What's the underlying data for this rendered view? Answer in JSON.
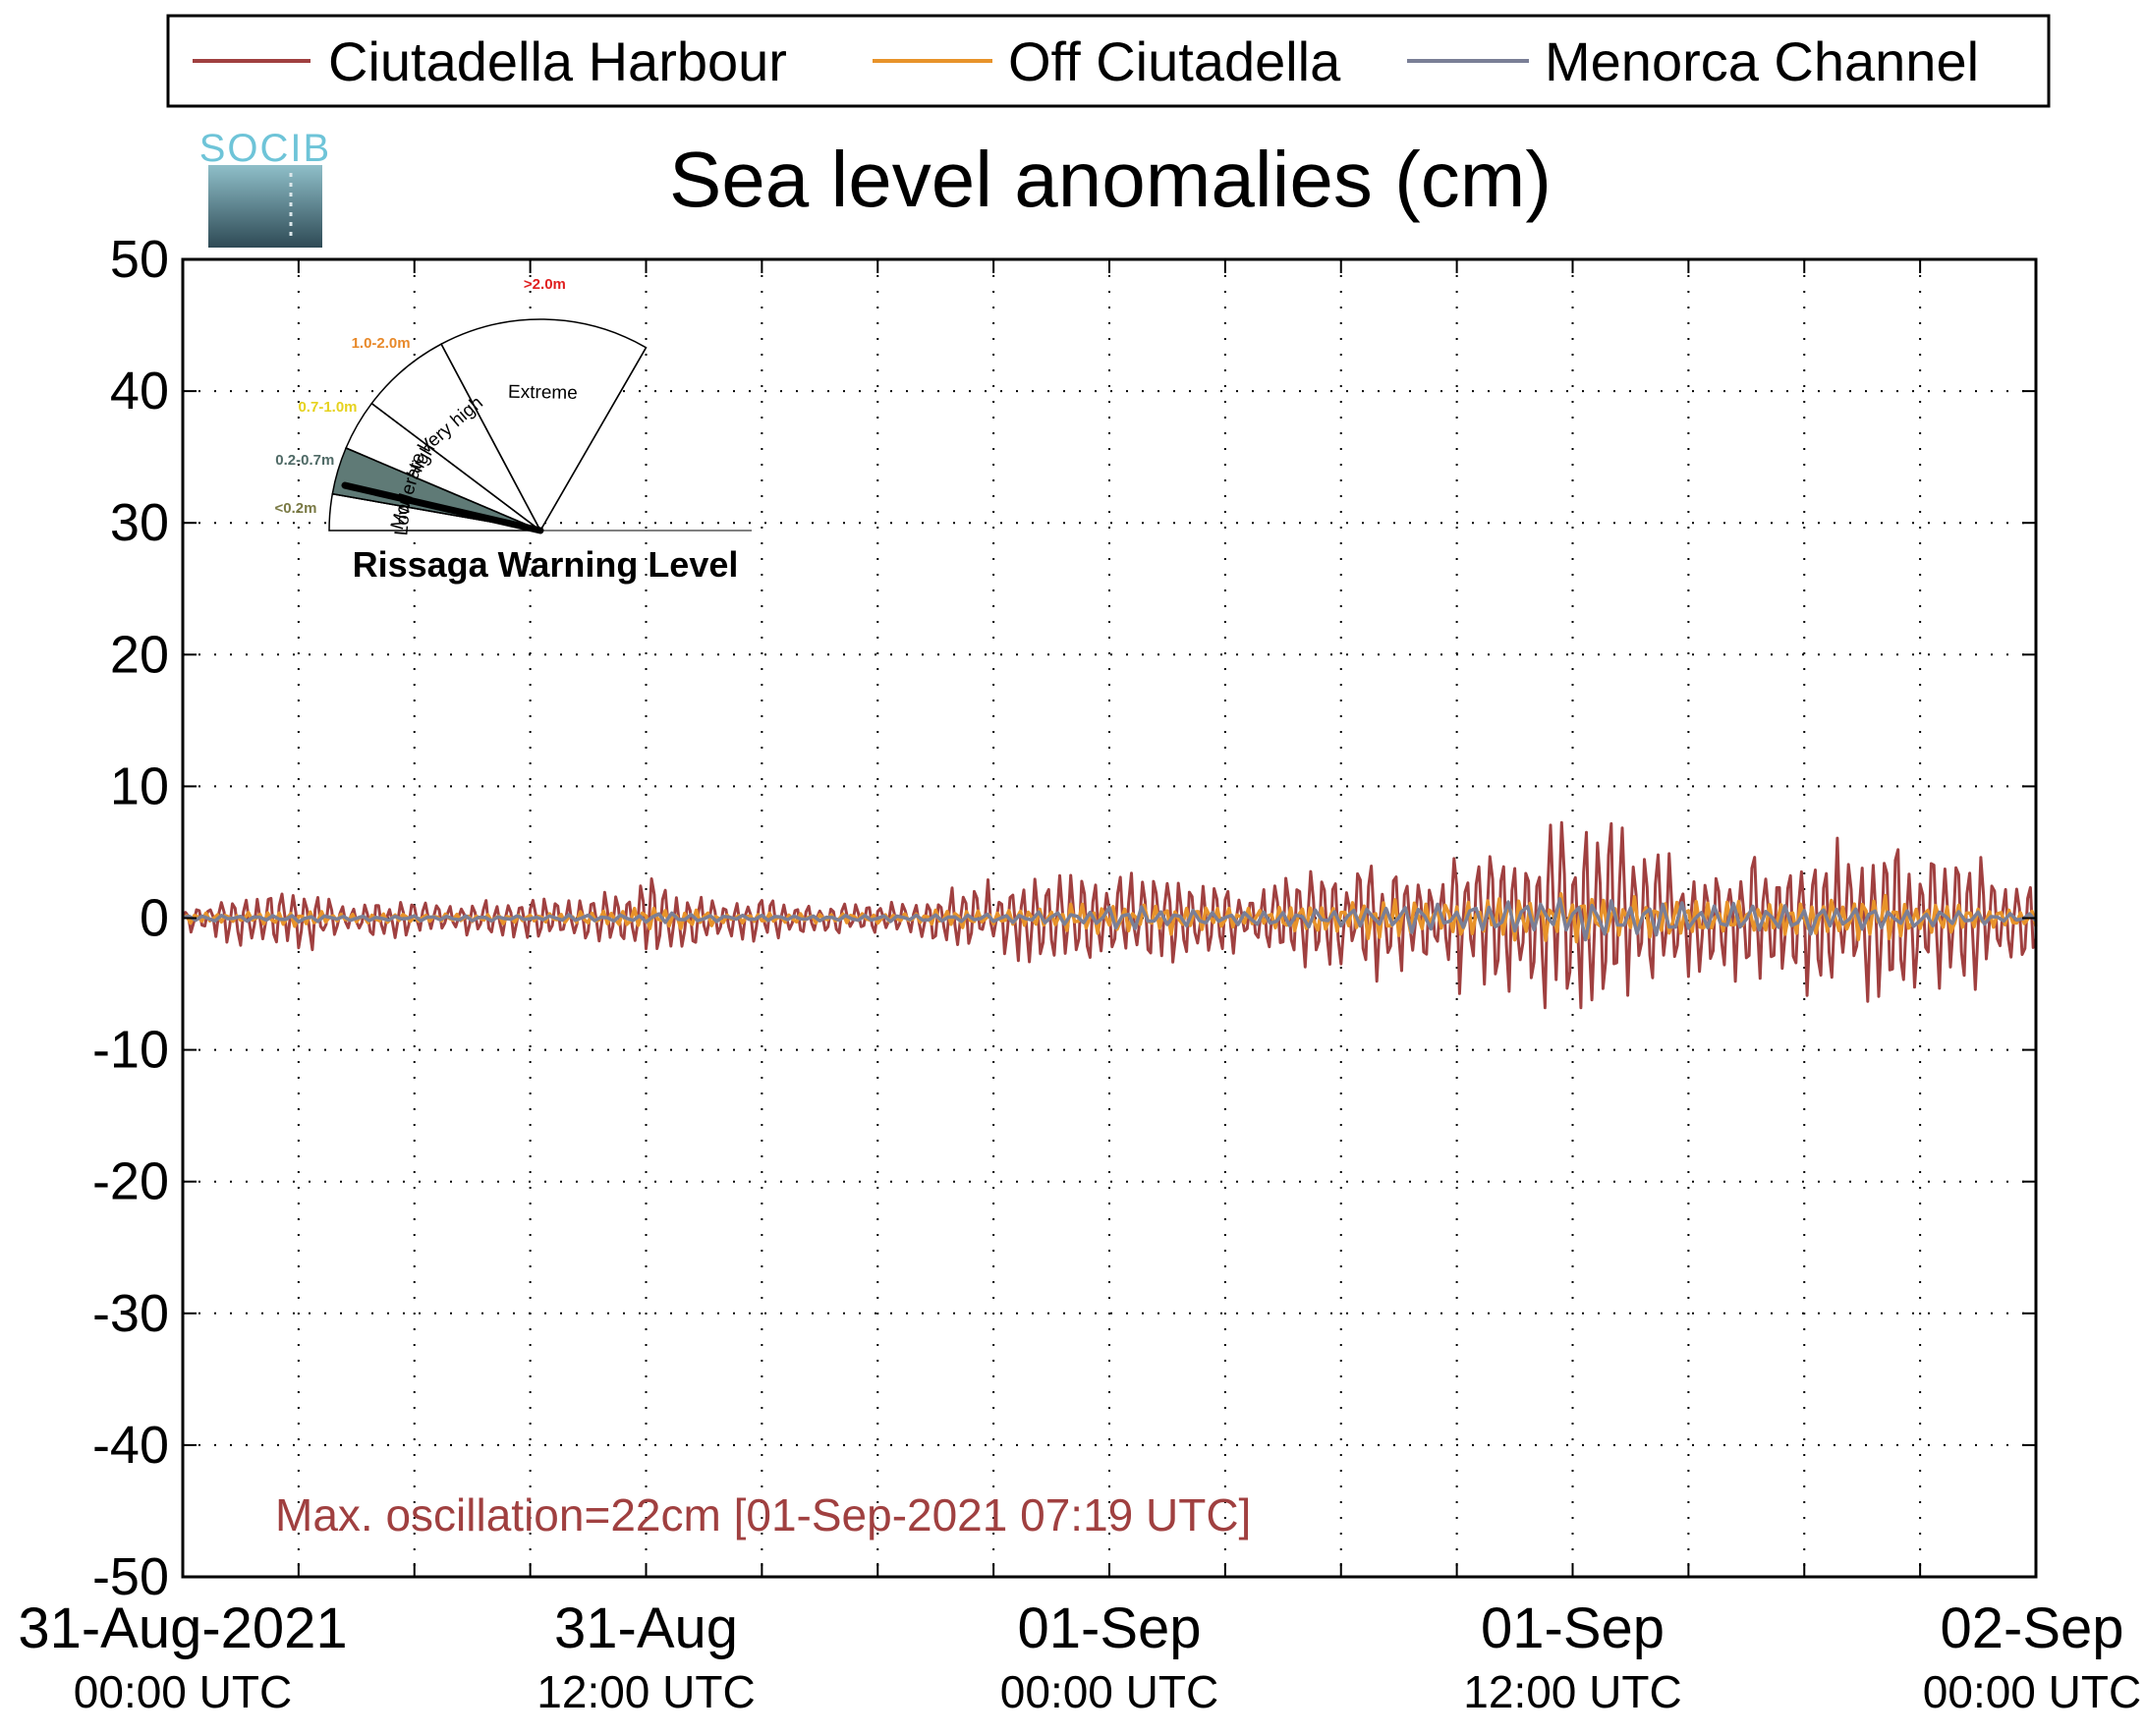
{
  "chart_data": {
    "type": "line",
    "title": "Sea level anomalies (cm)",
    "xlabel": "",
    "ylabel": "",
    "ylim": [
      -50,
      50
    ],
    "yticks": [
      50,
      40,
      30,
      20,
      10,
      0,
      -10,
      -20,
      -30,
      -40,
      -50
    ],
    "xlim_hours": [
      0,
      48
    ],
    "xticks": [
      {
        "hour": 0,
        "date": "31-Aug-2021",
        "time": "00:00 UTC"
      },
      {
        "hour": 12,
        "date": "31-Aug",
        "time": "12:00 UTC"
      },
      {
        "hour": 24,
        "date": "01-Sep",
        "time": "00:00 UTC"
      },
      {
        "hour": 36,
        "date": "01-Sep",
        "time": "12:00 UTC"
      },
      {
        "hour": 48,
        "date": "02-Sep",
        "time": "00:00 UTC"
      }
    ],
    "grid": true,
    "legend_position": "top",
    "annotation": "Max. oscillation=22cm [01-Sep-2021 07:19 UTC]",
    "envelope_note": "hourly approximate oscillation envelopes (cm)",
    "series": [
      {
        "name": "Ciutadella Harbour",
        "color": "#a04040",
        "amplitude_by_hour": [
          1,
          2,
          3,
          3.5,
          1.5,
          2,
          1.5,
          1.5,
          2,
          2,
          2,
          3,
          4,
          3.5,
          2,
          2,
          1.5,
          1.5,
          1.5,
          2,
          3,
          3,
          4.5,
          5,
          4.5,
          5,
          4.5,
          3,
          3,
          4.5,
          5,
          5,
          5.5,
          6.5,
          7,
          7.5,
          11,
          10,
          7,
          5,
          5,
          6,
          7,
          7,
          8,
          8,
          7,
          5,
          4
        ]
      },
      {
        "name": "Off Ciutadella",
        "color": "#e8932a",
        "amplitude_by_hour": [
          0.5,
          0.5,
          0.5,
          0.8,
          0.5,
          0.5,
          0.4,
          0.4,
          0.5,
          0.5,
          0.5,
          0.8,
          1,
          1,
          0.5,
          0.5,
          0.4,
          0.4,
          0.5,
          0.5,
          0.8,
          0.8,
          1,
          1.5,
          1.5,
          1.5,
          1.5,
          1,
          1,
          1.5,
          1.5,
          2,
          2,
          2,
          2,
          2.5,
          2.5,
          2,
          2,
          2,
          2,
          2,
          2,
          2,
          2,
          1.5,
          1.5,
          1,
          1
        ]
      },
      {
        "name": "Menorca Channel",
        "color": "#7a7f96",
        "amplitude_by_hour": [
          0.3,
          0.3,
          0.3,
          0.4,
          0.3,
          0.3,
          0.3,
          0.3,
          0.3,
          0.3,
          0.3,
          0.4,
          0.5,
          0.5,
          0.3,
          0.3,
          0.3,
          0.3,
          0.3,
          0.3,
          0.4,
          0.5,
          0.6,
          0.8,
          1,
          1,
          1,
          0.8,
          0.8,
          1,
          1,
          1.2,
          1.5,
          1.5,
          1.8,
          2,
          2,
          1.8,
          1.8,
          1.5,
          1.5,
          1.5,
          1.5,
          1.2,
          1,
          1,
          0.8,
          0.6,
          0.5
        ]
      }
    ]
  },
  "logo": {
    "text": "SOCIB"
  },
  "gauge": {
    "title": "Rissaga Warning Level",
    "levels": [
      {
        "name": "Low",
        "range": "<0.2m",
        "range_color": "#7a7a45"
      },
      {
        "name": "Moderate",
        "range": "0.2-0.7m",
        "range_color": "#4f6a66"
      },
      {
        "name": "High",
        "range": "0.7-1.0m",
        "range_color": "#e6d21e"
      },
      {
        "name": "Very high",
        "range": "1.0-2.0m",
        "range_color": "#e8892a"
      },
      {
        "name": "Extreme",
        "range": ">2.0m",
        "range_color": "#e01f1f"
      }
    ],
    "active_level": "Moderate",
    "active_fill": "#5f7a76"
  }
}
